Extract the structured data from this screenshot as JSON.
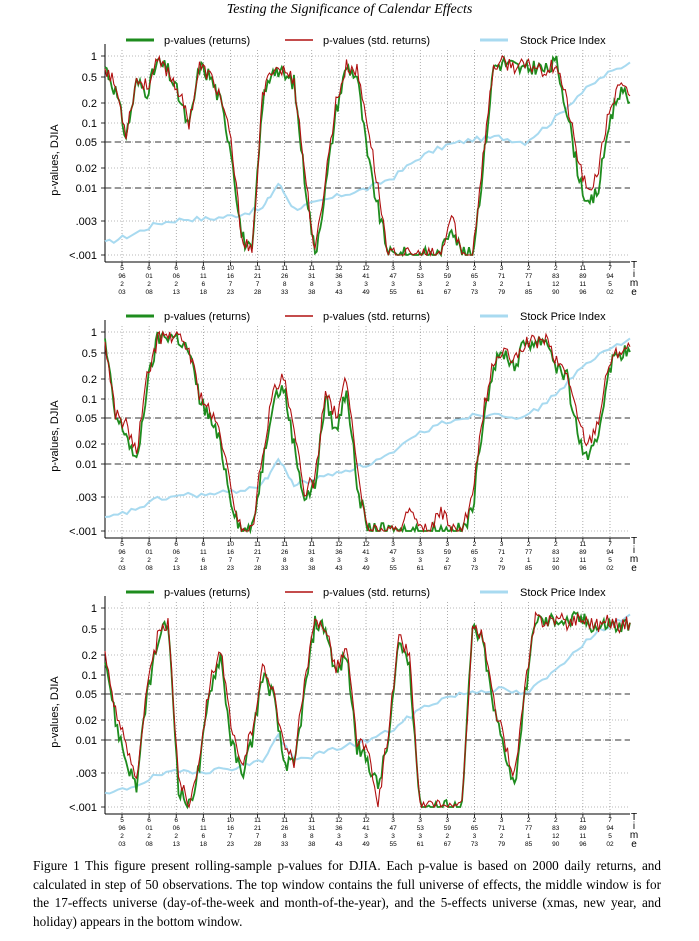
{
  "page": {
    "running_header": "Testing the Significance of Calendar Effects",
    "caption": "Figure 1 This figure present rolling-sample p-values for DJIA. Each p-value is based on 2000 daily returns, and calculated in step of 50 observations. The top window contains the full universe of effects, the middle window is for the 17-effects universe (day-of-the-week and month-of-the-year), and the 5-effects universe (xmas, new year, and holiday) appears in the bottom window."
  },
  "colors": {
    "returns": "#1e8c1e",
    "std_returns": "#b01010",
    "index": "#a8daf0",
    "dashed": "#333333",
    "grid": "#777777"
  },
  "legend": [
    "p-values (returns)",
    "p-values (std. returns)",
    "Stock Price Index"
  ],
  "axes": {
    "ylabel": "p-values, DJIA",
    "yticks": [
      "1",
      "0.5",
      "0.2",
      "0.1",
      "0.05",
      "0.02",
      "0.01",
      ".003",
      "<.001"
    ],
    "xlabel_letters": [
      "T",
      "i",
      "m",
      "e"
    ],
    "xticks_upper": [
      [
        "5",
        "96"
      ],
      [
        "6",
        "01"
      ],
      [
        "6",
        "06"
      ],
      [
        "6",
        "11"
      ],
      [
        "10",
        "16"
      ],
      [
        "11",
        "21"
      ],
      [
        "11",
        "26"
      ],
      [
        "11",
        "31"
      ],
      [
        "12",
        "36"
      ],
      [
        "12",
        "41"
      ],
      [
        "3",
        "47"
      ],
      [
        "3",
        "53"
      ],
      [
        "3",
        "59"
      ],
      [
        "2",
        "65"
      ],
      [
        "3",
        "71"
      ],
      [
        "2",
        "77"
      ],
      [
        "2",
        "83"
      ],
      [
        "11",
        "89"
      ],
      [
        "7",
        "94"
      ]
    ],
    "xticks_lower": [
      [
        "2",
        "03"
      ],
      [
        "2",
        "08"
      ],
      [
        "2",
        "13"
      ],
      [
        "6",
        "18"
      ],
      [
        "7",
        "23"
      ],
      [
        "7",
        "28"
      ],
      [
        "8",
        "33"
      ],
      [
        "8",
        "38"
      ],
      [
        "3",
        "43"
      ],
      [
        "3",
        "49"
      ],
      [
        "3",
        "55"
      ],
      [
        "3",
        "61"
      ],
      [
        "2",
        "67"
      ],
      [
        "3",
        "73"
      ],
      [
        "2",
        "79"
      ],
      [
        "1",
        "85"
      ],
      [
        "12",
        "90"
      ],
      [
        "11",
        "96"
      ],
      [
        "5",
        "02"
      ]
    ]
  },
  "chart_data": [
    {
      "type": "line",
      "title": "",
      "yscale": "log",
      "ylim": [
        0.001,
        1
      ],
      "horizontal_reference_lines": [
        0.05,
        0.01
      ],
      "legend": "top",
      "grid": true,
      "series": [
        {
          "name": "p-values (returns)",
          "x": [
            0,
            0.02,
            0.04,
            0.06,
            0.08,
            0.1,
            0.12,
            0.14,
            0.16,
            0.18,
            0.2,
            0.22,
            0.24,
            0.26,
            0.28,
            0.3,
            0.32,
            0.34,
            0.36,
            0.38,
            0.4,
            0.42,
            0.44,
            0.46,
            0.48,
            0.5,
            0.52,
            0.54,
            0.56,
            0.58,
            0.6,
            0.62,
            0.64,
            0.66,
            0.68,
            0.7,
            0.72,
            0.74,
            0.76,
            0.78,
            0.8,
            0.82,
            0.84,
            0.86,
            0.88,
            0.9,
            0.92,
            0.94,
            0.96,
            0.98,
            1
          ],
          "y": [
            0.7,
            0.3,
            0.06,
            0.4,
            0.3,
            0.8,
            0.6,
            0.25,
            0.08,
            0.7,
            0.5,
            0.2,
            0.04,
            0.002,
            0.001,
            0.2,
            0.7,
            0.5,
            0.4,
            0.015,
            0.001,
            0.01,
            0.15,
            0.7,
            0.5,
            0.03,
            0.005,
            0.001,
            0.001,
            0.001,
            0.001,
            0.001,
            0.001,
            0.003,
            0.001,
            0.001,
            0.02,
            0.7,
            0.8,
            0.7,
            0.6,
            0.7,
            0.6,
            0.8,
            0.15,
            0.02,
            0.005,
            0.01,
            0.1,
            0.3,
            0.2
          ]
        },
        {
          "name": "p-values (std. returns)",
          "x": [
            0,
            0.02,
            0.04,
            0.06,
            0.08,
            0.1,
            0.12,
            0.14,
            0.16,
            0.18,
            0.2,
            0.22,
            0.24,
            0.26,
            0.28,
            0.3,
            0.32,
            0.34,
            0.36,
            0.38,
            0.4,
            0.42,
            0.44,
            0.46,
            0.48,
            0.5,
            0.52,
            0.54,
            0.56,
            0.58,
            0.6,
            0.62,
            0.64,
            0.66,
            0.68,
            0.7,
            0.72,
            0.74,
            0.76,
            0.78,
            0.8,
            0.82,
            0.84,
            0.86,
            0.88,
            0.9,
            0.92,
            0.94,
            0.96,
            0.98,
            1
          ],
          "y": [
            0.7,
            0.35,
            0.07,
            0.45,
            0.35,
            0.8,
            0.6,
            0.3,
            0.1,
            0.7,
            0.5,
            0.25,
            0.05,
            0.002,
            0.001,
            0.25,
            0.7,
            0.6,
            0.45,
            0.02,
            0.001,
            0.015,
            0.2,
            0.7,
            0.6,
            0.1,
            0.01,
            0.001,
            0.001,
            0.001,
            0.001,
            0.001,
            0.001,
            0.004,
            0.001,
            0.001,
            0.03,
            0.7,
            0.8,
            0.7,
            0.7,
            0.7,
            0.6,
            0.8,
            0.2,
            0.03,
            0.008,
            0.02,
            0.15,
            0.35,
            0.25
          ]
        },
        {
          "name": "Stock Price Index",
          "x": [
            0,
            0.05,
            0.1,
            0.15,
            0.2,
            0.25,
            0.3,
            0.33,
            0.36,
            0.4,
            0.45,
            0.5,
            0.55,
            0.6,
            0.65,
            0.7,
            0.75,
            0.8,
            0.85,
            0.9,
            0.95,
            1
          ],
          "y": [
            0.0015,
            0.002,
            0.003,
            0.0035,
            0.0035,
            0.004,
            0.005,
            0.012,
            0.005,
            0.006,
            0.008,
            0.01,
            0.015,
            0.03,
            0.045,
            0.055,
            0.06,
            0.05,
            0.1,
            0.25,
            0.5,
            0.8
          ]
        }
      ]
    },
    {
      "type": "line",
      "title": "",
      "yscale": "log",
      "ylim": [
        0.001,
        1
      ],
      "horizontal_reference_lines": [
        0.05,
        0.01
      ],
      "legend": "top",
      "grid": true,
      "series": [
        {
          "name": "p-values (returns)",
          "x": [
            0,
            0.02,
            0.04,
            0.06,
            0.08,
            0.1,
            0.12,
            0.14,
            0.16,
            0.18,
            0.2,
            0.22,
            0.24,
            0.26,
            0.28,
            0.3,
            0.32,
            0.34,
            0.36,
            0.38,
            0.4,
            0.42,
            0.44,
            0.46,
            0.48,
            0.5,
            0.52,
            0.54,
            0.56,
            0.58,
            0.6,
            0.62,
            0.64,
            0.66,
            0.68,
            0.7,
            0.72,
            0.74,
            0.76,
            0.78,
            0.8,
            0.82,
            0.84,
            0.86,
            0.88,
            0.9,
            0.92,
            0.94,
            0.96,
            0.98,
            1
          ],
          "y": [
            0.7,
            0.05,
            0.03,
            0.01,
            0.15,
            0.8,
            0.9,
            0.8,
            0.5,
            0.1,
            0.05,
            0.02,
            0.003,
            0.001,
            0.001,
            0.01,
            0.1,
            0.15,
            0.02,
            0.003,
            0.005,
            0.1,
            0.03,
            0.15,
            0.005,
            0.001,
            0.001,
            0.001,
            0.001,
            0.001,
            0.001,
            0.001,
            0.001,
            0.001,
            0.001,
            0.002,
            0.05,
            0.3,
            0.5,
            0.3,
            0.7,
            0.7,
            0.8,
            0.3,
            0.2,
            0.03,
            0.01,
            0.03,
            0.3,
            0.5,
            0.5
          ]
        },
        {
          "name": "p-values (std. returns)",
          "x": [
            0,
            0.02,
            0.04,
            0.06,
            0.08,
            0.1,
            0.12,
            0.14,
            0.16,
            0.18,
            0.2,
            0.22,
            0.24,
            0.26,
            0.28,
            0.3,
            0.32,
            0.34,
            0.36,
            0.38,
            0.4,
            0.42,
            0.44,
            0.46,
            0.48,
            0.5,
            0.52,
            0.54,
            0.56,
            0.58,
            0.6,
            0.62,
            0.64,
            0.66,
            0.68,
            0.7,
            0.72,
            0.74,
            0.76,
            0.78,
            0.8,
            0.82,
            0.84,
            0.86,
            0.88,
            0.9,
            0.92,
            0.94,
            0.96,
            0.98,
            1
          ],
          "y": [
            0.7,
            0.06,
            0.04,
            0.015,
            0.2,
            0.8,
            0.9,
            0.8,
            0.55,
            0.12,
            0.06,
            0.03,
            0.004,
            0.001,
            0.001,
            0.015,
            0.12,
            0.2,
            0.03,
            0.004,
            0.006,
            0.15,
            0.05,
            0.2,
            0.01,
            0.001,
            0.001,
            0.001,
            0.001,
            0.002,
            0.001,
            0.001,
            0.002,
            0.001,
            0.001,
            0.003,
            0.06,
            0.35,
            0.5,
            0.35,
            0.7,
            0.7,
            0.8,
            0.35,
            0.25,
            0.05,
            0.02,
            0.05,
            0.35,
            0.55,
            0.6
          ]
        },
        {
          "name": "Stock Price Index",
          "x": [
            0,
            0.05,
            0.1,
            0.15,
            0.2,
            0.25,
            0.3,
            0.33,
            0.36,
            0.4,
            0.45,
            0.5,
            0.55,
            0.6,
            0.65,
            0.7,
            0.75,
            0.8,
            0.85,
            0.9,
            0.95,
            1
          ],
          "y": [
            0.0015,
            0.002,
            0.003,
            0.0035,
            0.0035,
            0.004,
            0.005,
            0.012,
            0.005,
            0.006,
            0.008,
            0.01,
            0.015,
            0.03,
            0.045,
            0.055,
            0.06,
            0.05,
            0.1,
            0.25,
            0.5,
            0.8
          ]
        }
      ]
    },
    {
      "type": "line",
      "title": "",
      "yscale": "log",
      "ylim": [
        0.001,
        1
      ],
      "horizontal_reference_lines": [
        0.05,
        0.01
      ],
      "legend": "top",
      "grid": true,
      "series": [
        {
          "name": "p-values (returns)",
          "x": [
            0,
            0.02,
            0.04,
            0.06,
            0.08,
            0.1,
            0.12,
            0.14,
            0.16,
            0.18,
            0.2,
            0.22,
            0.24,
            0.26,
            0.28,
            0.3,
            0.32,
            0.34,
            0.36,
            0.38,
            0.4,
            0.42,
            0.44,
            0.46,
            0.48,
            0.5,
            0.52,
            0.54,
            0.56,
            0.58,
            0.6,
            0.62,
            0.64,
            0.66,
            0.68,
            0.7,
            0.72,
            0.74,
            0.76,
            0.78,
            0.8,
            0.82,
            0.84,
            0.86,
            0.88,
            0.9,
            0.92,
            0.94,
            0.96,
            0.98,
            1
          ],
          "y": [
            0.2,
            0.02,
            0.005,
            0.002,
            0.05,
            0.3,
            0.6,
            0.002,
            0.001,
            0.004,
            0.06,
            0.2,
            0.01,
            0.003,
            0.01,
            0.1,
            0.05,
            0.005,
            0.004,
            0.05,
            0.6,
            0.5,
            0.1,
            0.2,
            0.008,
            0.005,
            0.002,
            0.01,
            0.3,
            0.15,
            0.001,
            0.001,
            0.001,
            0.001,
            0.001,
            0.5,
            0.3,
            0.03,
            0.008,
            0.002,
            0.05,
            0.7,
            0.6,
            0.7,
            0.6,
            0.7,
            0.6,
            0.5,
            0.6,
            0.5,
            0.6
          ]
        },
        {
          "name": "p-values (std. returns)",
          "x": [
            0,
            0.02,
            0.04,
            0.06,
            0.08,
            0.1,
            0.12,
            0.14,
            0.16,
            0.18,
            0.2,
            0.22,
            0.24,
            0.26,
            0.28,
            0.3,
            0.32,
            0.34,
            0.36,
            0.38,
            0.4,
            0.42,
            0.44,
            0.46,
            0.48,
            0.5,
            0.52,
            0.54,
            0.56,
            0.58,
            0.6,
            0.62,
            0.64,
            0.66,
            0.68,
            0.7,
            0.72,
            0.74,
            0.76,
            0.78,
            0.8,
            0.82,
            0.84,
            0.86,
            0.88,
            0.9,
            0.92,
            0.94,
            0.96,
            0.98,
            1
          ],
          "y": [
            0.2,
            0.03,
            0.008,
            0.003,
            0.06,
            0.35,
            0.6,
            0.003,
            0.001,
            0.006,
            0.08,
            0.25,
            0.015,
            0.004,
            0.015,
            0.12,
            0.07,
            0.008,
            0.005,
            0.07,
            0.6,
            0.55,
            0.12,
            0.25,
            0.01,
            0.007,
            0.001,
            0.015,
            0.35,
            0.2,
            0.001,
            0.001,
            0.001,
            0.001,
            0.001,
            0.55,
            0.35,
            0.04,
            0.01,
            0.003,
            0.06,
            0.7,
            0.65,
            0.7,
            0.6,
            0.7,
            0.65,
            0.55,
            0.65,
            0.55,
            0.6
          ]
        },
        {
          "name": "Stock Price Index",
          "x": [
            0,
            0.05,
            0.1,
            0.15,
            0.2,
            0.25,
            0.3,
            0.33,
            0.36,
            0.4,
            0.45,
            0.5,
            0.55,
            0.6,
            0.65,
            0.7,
            0.75,
            0.8,
            0.85,
            0.9,
            0.95,
            1
          ],
          "y": [
            0.0015,
            0.002,
            0.003,
            0.0035,
            0.0035,
            0.004,
            0.005,
            0.012,
            0.005,
            0.006,
            0.008,
            0.01,
            0.015,
            0.03,
            0.045,
            0.055,
            0.06,
            0.05,
            0.1,
            0.25,
            0.5,
            0.8
          ]
        }
      ]
    }
  ]
}
